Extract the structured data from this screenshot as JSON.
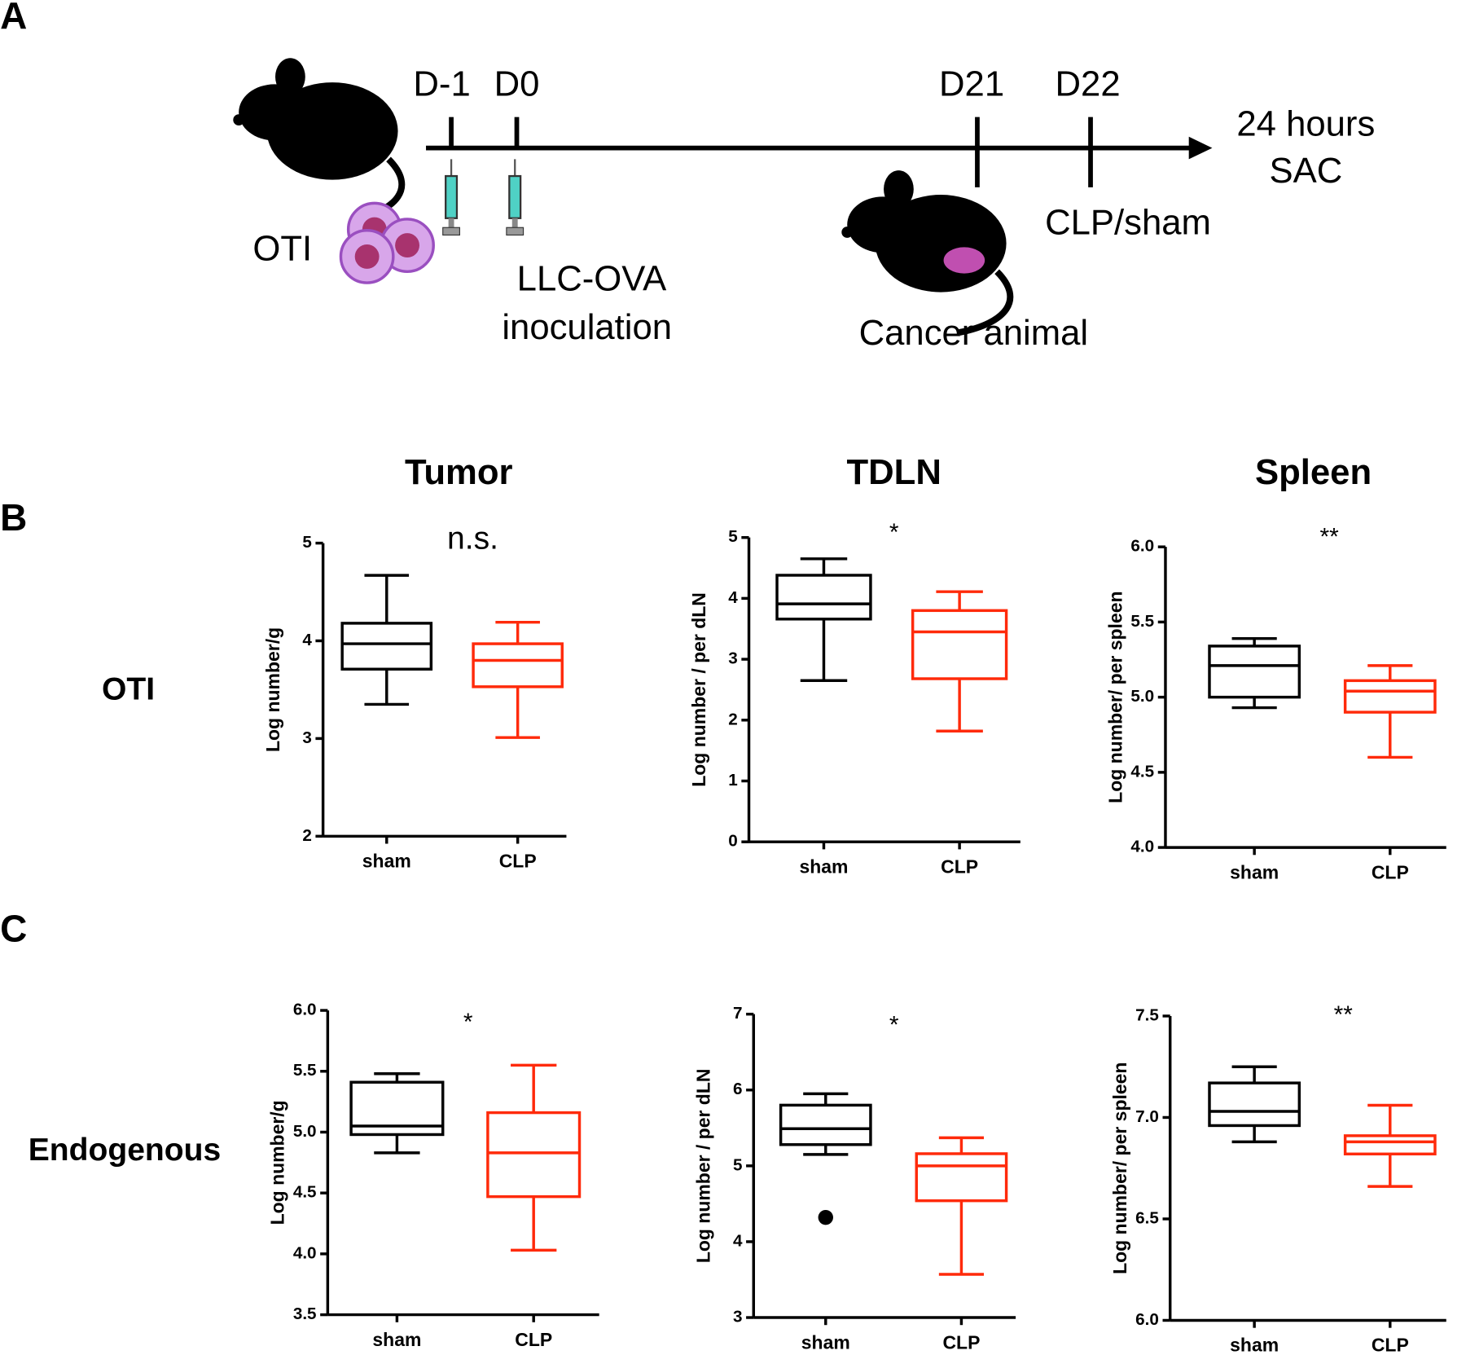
{
  "panel_labels": [
    "A",
    "B",
    "C"
  ],
  "timeline": {
    "days": [
      "D-1",
      "D0",
      "D21",
      "D22"
    ],
    "end": [
      "24 hours",
      "SAC"
    ],
    "cells_label": "OTI",
    "injection": [
      "LLC-OVA",
      "inoculation"
    ],
    "surgery": "CLP/sham",
    "animal": "Cancer animal"
  },
  "column_titles": [
    "Tumor",
    "TDLN",
    "Spleen"
  ],
  "row_labels": [
    "OTI",
    "Endogenous"
  ],
  "chart_data": [
    {
      "type": "box",
      "ylabel": "Log number/g",
      "annotation": "n.s.",
      "categories": [
        "sham",
        "CLP"
      ],
      "ylim": [
        2,
        5
      ],
      "yticks": [
        2,
        3,
        4,
        5
      ],
      "boxes": [
        {
          "color": "#000000",
          "min": 3.35,
          "q1": 3.71,
          "median": 3.97,
          "q3": 4.18,
          "max": 4.67
        },
        {
          "color": "#ff2a0a",
          "min": 3.01,
          "q1": 3.53,
          "median": 3.8,
          "q3": 3.97,
          "max": 4.19
        }
      ]
    },
    {
      "type": "box",
      "ylabel": "Log number / per dLN",
      "annotation": "*",
      "categories": [
        "sham",
        "CLP"
      ],
      "ylim": [
        0,
        5
      ],
      "yticks": [
        0,
        1,
        2,
        3,
        4,
        5
      ],
      "boxes": [
        {
          "color": "#000000",
          "min": 2.65,
          "q1": 3.66,
          "median": 3.91,
          "q3": 4.38,
          "max": 4.65
        },
        {
          "color": "#ff2a0a",
          "min": 1.82,
          "q1": 2.68,
          "median": 3.45,
          "q3": 3.8,
          "max": 4.11
        }
      ]
    },
    {
      "type": "box",
      "ylabel": "Log number/ per spleen",
      "annotation": "**",
      "categories": [
        "sham",
        "CLP"
      ],
      "ylim": [
        4,
        6
      ],
      "yticks": [
        {
          "value": 4,
          "label": "4.0"
        },
        4.5,
        {
          "value": 5,
          "label": "5.0"
        },
        5.5,
        {
          "value": 6,
          "label": "6.0"
        }
      ],
      "boxes": [
        {
          "color": "#000000",
          "min": 4.93,
          "q1": 5.0,
          "median": 5.21,
          "q3": 5.34,
          "max": 5.39
        },
        {
          "color": "#ff2a0a",
          "min": 4.6,
          "q1": 4.9,
          "median": 5.04,
          "q3": 5.11,
          "max": 5.21
        }
      ]
    },
    {
      "type": "box",
      "ylabel": "Log number/g",
      "annotation": "*",
      "categories": [
        "sham",
        "CLP"
      ],
      "ylim": [
        3.5,
        6
      ],
      "yticks": [
        3.5,
        {
          "value": 4,
          "label": "4.0"
        },
        4.5,
        {
          "value": 5,
          "label": "5.0"
        },
        5.5,
        {
          "value": 6,
          "label": "6.0"
        }
      ],
      "boxes": [
        {
          "color": "#000000",
          "min": 4.83,
          "q1": 4.98,
          "median": 5.05,
          "q3": 5.41,
          "max": 5.48
        },
        {
          "color": "#ff2a0a",
          "min": 4.03,
          "q1": 4.47,
          "median": 4.83,
          "q3": 5.16,
          "max": 5.55
        }
      ]
    },
    {
      "type": "box",
      "ylabel": "Log number / per dLN",
      "annotation": "*",
      "categories": [
        "sham",
        "CLP"
      ],
      "ylim": [
        3,
        7
      ],
      "yticks": [
        3,
        4,
        5,
        6,
        7
      ],
      "boxes": [
        {
          "color": "#000000",
          "min": 5.15,
          "q1": 5.28,
          "median": 5.49,
          "q3": 5.8,
          "max": 5.95,
          "outliers": [
            4.32
          ]
        },
        {
          "color": "#ff2a0a",
          "min": 3.57,
          "q1": 4.54,
          "median": 5.0,
          "q3": 5.16,
          "max": 5.37
        }
      ]
    },
    {
      "type": "box",
      "ylabel": "Log number/ per spleen",
      "annotation": "**",
      "categories": [
        "sham",
        "CLP"
      ],
      "ylim": [
        6,
        7.5
      ],
      "yticks": [
        {
          "value": 6,
          "label": "6.0"
        },
        6.5,
        {
          "value": 7,
          "label": "7.0"
        },
        7.5
      ],
      "boxes": [
        {
          "color": "#000000",
          "min": 6.88,
          "q1": 6.96,
          "median": 7.03,
          "q3": 7.17,
          "max": 7.25
        },
        {
          "color": "#ff2a0a",
          "min": 6.66,
          "q1": 6.82,
          "median": 6.88,
          "q3": 6.91,
          "max": 7.06
        }
      ]
    }
  ]
}
